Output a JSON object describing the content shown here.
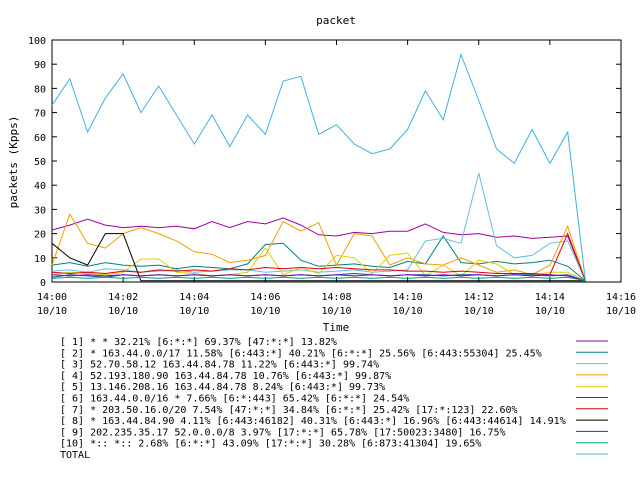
{
  "chart_data": {
    "type": "line",
    "title": "packet",
    "xlabel": "Time",
    "ylabel": "packets (Kpps)",
    "ylim": [
      0,
      100
    ],
    "xlim": [
      "14:00",
      "14:16"
    ],
    "grid": false,
    "legend_position": "bottom",
    "y_ticks": [
      "0",
      "10",
      "20",
      "30",
      "40",
      "50",
      "60",
      "70",
      "80",
      "90",
      "100"
    ],
    "x_ticks": [
      {
        "time": "14:00",
        "date": "10/10"
      },
      {
        "time": "14:02",
        "date": "10/10"
      },
      {
        "time": "14:04",
        "date": "10/10"
      },
      {
        "time": "14:06",
        "date": "10/10"
      },
      {
        "time": "14:08",
        "date": "10/10"
      },
      {
        "time": "14:10",
        "date": "10/10"
      },
      {
        "time": "14:12",
        "date": "10/10"
      },
      {
        "time": "14:14",
        "date": "10/10"
      },
      {
        "time": "14:16",
        "date": "10/10"
      }
    ],
    "x_minutes": [
      0,
      0.5,
      1,
      1.5,
      2,
      2.5,
      3,
      3.5,
      4,
      4.5,
      5,
      5.5,
      6,
      6.5,
      7,
      7.5,
      8,
      8.5,
      9,
      9.5,
      10,
      10.5,
      11,
      11.5,
      12,
      12.5,
      13,
      13.5,
      14,
      14.5,
      15
    ],
    "series": [
      {
        "name": "[ 1] * * 32.21%  [6:*:*] 69.37% [47:*:*] 13.82%",
        "color": "#a000a0",
        "values": [
          21.5,
          23.5,
          26,
          23.5,
          22.5,
          23,
          22.5,
          23,
          22,
          25,
          22.5,
          25,
          24,
          26.5,
          23.5,
          19.5,
          19,
          20.5,
          20,
          21,
          21,
          24,
          20.5,
          19.5,
          20,
          18.5,
          19,
          18,
          18.5,
          19,
          0.5
        ]
      },
      {
        "name": "[ 2] * 163.44.0.0/17 11.58%  [6:443:*] 40.21% [6:*:*] 25.56% [6:443:55304] 25.45%",
        "color": "#008080",
        "values": [
          7,
          8,
          6.5,
          8,
          7,
          6.5,
          7,
          5.5,
          6.5,
          6,
          5.5,
          7.5,
          15.5,
          16,
          9,
          6.5,
          7,
          7.5,
          6.5,
          6,
          8.5,
          7.5,
          19,
          8,
          7.5,
          8.5,
          7.5,
          8,
          9,
          6.5,
          0.5
        ]
      },
      {
        "name": "[ 3] 52.70.58.12 163.44.84.78 11.22%  [6:443:*] 99.74%",
        "color": "#60c0e0",
        "values": [
          4.5,
          5,
          4,
          5.5,
          5,
          4,
          4.5,
          5,
          4,
          4.5,
          5,
          5,
          4,
          4.5,
          5,
          4,
          4.5,
          5,
          4,
          4.5,
          5,
          17,
          18,
          16,
          45,
          15,
          10,
          11,
          16,
          17,
          0.5
        ]
      },
      {
        "name": "[ 4] 52.193.180.90 163.44.84.78 10.76%  [6:443:*] 99.87%",
        "color": "#f0a000",
        "values": [
          7,
          28,
          16,
          14,
          20,
          22.5,
          20,
          17,
          12.5,
          11.5,
          8,
          9,
          11,
          25,
          21,
          24.5,
          7,
          20,
          19,
          7,
          10,
          7.5,
          7,
          10,
          7,
          4,
          5,
          3,
          7,
          23,
          0.5
        ]
      },
      {
        "name": "[ 5] 13.146.208.16 163.44.84.78 8.24%  [6:443:*] 99.73%",
        "color": "#e0d000",
        "values": [
          3,
          4,
          3.5,
          3,
          4,
          9.5,
          9.5,
          4,
          3.5,
          2.5,
          3,
          4,
          14,
          3,
          6,
          3.5,
          11,
          10,
          3.5,
          11,
          12,
          2.5,
          7,
          2.5,
          9,
          7.5,
          3,
          2.5,
          4,
          4,
          0.5
        ]
      },
      {
        "name": "[ 6] 163.44.0.0/16 * 7.66%  [6:*:443] 65.42% [6:*:*] 24.54%",
        "color": "#0050b0",
        "values": [
          2,
          3,
          2.5,
          2,
          3,
          2.5,
          3,
          2.5,
          3,
          2.5,
          3,
          2.5,
          3,
          2.5,
          3,
          2.5,
          3,
          3.5,
          3,
          2.5,
          3,
          3,
          2.5,
          3,
          3,
          2.5,
          3,
          3,
          2.5,
          3,
          0.5
        ]
      },
      {
        "name": "[ 7] * 203.50.16.0/20 7.54%  [47:*:*] 34.84% [6:*:*] 25.42% [17:*:123] 22.60%",
        "color": "#e00000",
        "values": [
          4,
          3.5,
          4,
          3.5,
          4.5,
          4,
          5,
          4.5,
          5,
          4.5,
          5.5,
          5,
          6,
          5.5,
          6,
          5.5,
          6,
          5.5,
          5,
          5,
          4.5,
          4.5,
          4,
          4.5,
          4,
          3.5,
          3.5,
          3.5,
          3,
          20,
          0.5
        ]
      },
      {
        "name": "[ 8] * 163.44.84.90 4.11%  [6:443:46182] 40.31% [6:443:*] 16.96% [6:443:44614] 14.91%",
        "color": "#000000",
        "values": [
          16,
          10,
          7,
          20,
          20,
          0.5,
          0.5,
          0.5,
          0.5,
          0.5,
          0.5,
          0.5,
          0.5,
          0.5,
          0.5,
          0.5,
          0.5,
          0.5,
          0.5,
          0.5,
          0.5,
          0.5,
          0.5,
          0.5,
          0.5,
          0.5,
          0.5,
          0.5,
          0.5,
          0.5,
          0.5
        ]
      },
      {
        "name": "[ 9] 202.235.35.17 52.0.0.0/8 3.97%  [17:*:*] 65.78% [17:50023:3480] 16.75%",
        "color": "#8000c0",
        "values": [
          3,
          2.5,
          3,
          2.5,
          3,
          2.5,
          3,
          2.5,
          3,
          2.5,
          3,
          2.5,
          3,
          2.5,
          3,
          2.5,
          3,
          2.5,
          3,
          2.5,
          3,
          2.5,
          3,
          2.5,
          3,
          2.5,
          3,
          2.5,
          3,
          2.5,
          0.5
        ]
      },
      {
        "name": "[10] *:: *:: 2.68%  [6:*:*] 43.09% [17:*:*] 30.28% [6:873:41304] 19.65%",
        "color": "#00a080",
        "values": [
          1.5,
          2,
          1.5,
          2,
          1.5,
          2,
          1.5,
          2,
          1.5,
          2,
          1.5,
          2,
          1.5,
          2,
          1.5,
          2,
          1.5,
          2,
          1.5,
          2,
          1.5,
          2,
          1.5,
          2,
          1.5,
          2,
          1.5,
          2,
          1.5,
          2,
          0.5
        ]
      },
      {
        "name": "TOTAL",
        "color": "#40b0e0",
        "values": [
          73,
          84,
          62,
          76,
          86,
          70,
          81,
          69,
          57,
          69,
          56,
          69,
          61,
          83,
          85,
          61,
          65,
          57,
          53,
          55,
          63,
          79,
          67,
          94,
          75,
          55,
          49,
          63,
          49,
          62,
          0.5
        ]
      }
    ]
  }
}
